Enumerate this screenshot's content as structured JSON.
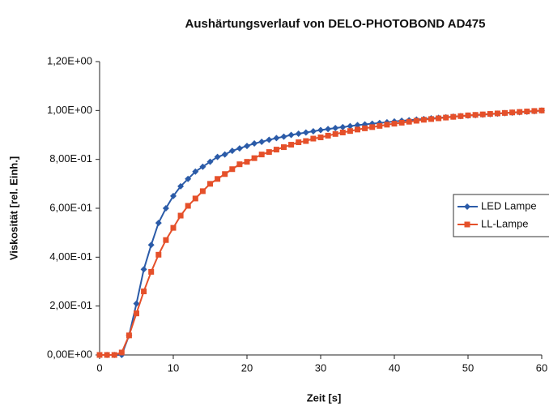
{
  "chart_data": {
    "type": "line",
    "title": "Aushärtungsverlauf von DELO-PHOTOBOND AD475",
    "x_label": "Zeit [s]",
    "y_label": "Viskosität [rel. Einh.]",
    "x": [
      0,
      1,
      2,
      3,
      4,
      5,
      6,
      7,
      8,
      9,
      10,
      11,
      12,
      13,
      14,
      15,
      16,
      17,
      18,
      19,
      20,
      21,
      22,
      23,
      24,
      25,
      26,
      27,
      28,
      29,
      30,
      31,
      32,
      33,
      34,
      35,
      36,
      37,
      38,
      39,
      40,
      41,
      42,
      43,
      44,
      45,
      46,
      47,
      48,
      49,
      50,
      51,
      52,
      53,
      54,
      55,
      56,
      57,
      58,
      59,
      60
    ],
    "series": [
      {
        "name": "LED Lampe",
        "color": "#2b5ba8",
        "marker": "diamond",
        "values": [
          0,
          0,
          0,
          0,
          0.08,
          0.21,
          0.35,
          0.45,
          0.54,
          0.6,
          0.65,
          0.69,
          0.72,
          0.75,
          0.77,
          0.79,
          0.81,
          0.82,
          0.835,
          0.845,
          0.855,
          0.865,
          0.872,
          0.88,
          0.887,
          0.893,
          0.9,
          0.905,
          0.91,
          0.915,
          0.92,
          0.924,
          0.928,
          0.932,
          0.936,
          0.94,
          0.943,
          0.946,
          0.949,
          0.952,
          0.955,
          0.958,
          0.96,
          0.963,
          0.965,
          0.968,
          0.97,
          0.972,
          0.975,
          0.977,
          0.979,
          0.981,
          0.983,
          0.985,
          0.987,
          0.989,
          0.991,
          0.993,
          0.995,
          0.997,
          1.0
        ]
      },
      {
        "name": "LL-Lampe",
        "color": "#e5502a",
        "marker": "square",
        "values": [
          0,
          0,
          0,
          0.01,
          0.08,
          0.17,
          0.26,
          0.34,
          0.41,
          0.47,
          0.52,
          0.57,
          0.61,
          0.64,
          0.67,
          0.7,
          0.72,
          0.74,
          0.76,
          0.78,
          0.79,
          0.805,
          0.82,
          0.83,
          0.84,
          0.85,
          0.86,
          0.87,
          0.875,
          0.885,
          0.89,
          0.897,
          0.904,
          0.91,
          0.916,
          0.922,
          0.927,
          0.932,
          0.937,
          0.942,
          0.946,
          0.95,
          0.954,
          0.958,
          0.962,
          0.965,
          0.968,
          0.971,
          0.974,
          0.977,
          0.98,
          0.982,
          0.984,
          0.986,
          0.988,
          0.99,
          0.992,
          0.994,
          0.996,
          0.998,
          1.0
        ]
      }
    ],
    "xlim": [
      0,
      60
    ],
    "xticks": [
      0,
      10,
      20,
      30,
      40,
      50,
      60
    ],
    "ylim": [
      0,
      1.2
    ],
    "yticks": [
      {
        "value": 0,
        "label": "0,00E+00"
      },
      {
        "value": 0.2,
        "label": "2,00E-01"
      },
      {
        "value": 0.4,
        "label": "4,00E-01"
      },
      {
        "value": 0.6,
        "label": "6,00E-01"
      },
      {
        "value": 0.8,
        "label": "8,00E-01"
      },
      {
        "value": 1.0,
        "label": "1,00E+00"
      },
      {
        "value": 1.2,
        "label": "1,20E+00"
      }
    ],
    "grid": false,
    "legend": "right"
  }
}
